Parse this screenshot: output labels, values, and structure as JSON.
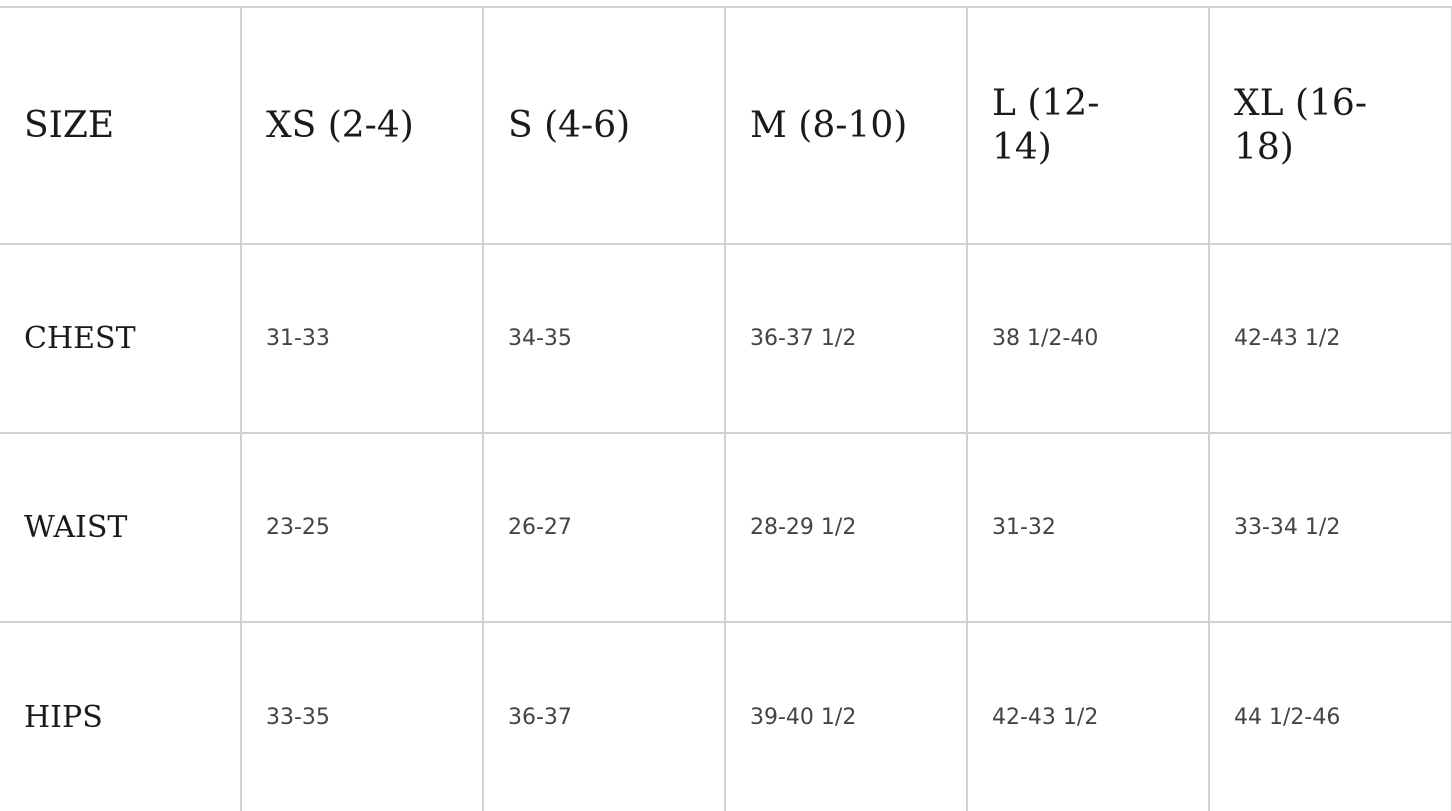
{
  "header": [
    "SIZE",
    "XS (2-4)",
    "S (4-6)",
    "M (8-10)",
    "L (12-14)",
    "XL (16-18)"
  ],
  "rows": [
    {
      "label": "CHEST",
      "values": [
        "31-33",
        "34-35",
        "36-37 1/2",
        "38 1/2-40",
        "42-43 1/2"
      ]
    },
    {
      "label": "WAIST",
      "values": [
        "23-25",
        "26-27",
        "28-29 1/2",
        "31-32",
        "33-34 1/2"
      ]
    },
    {
      "label": "HIPS",
      "values": [
        "33-35",
        "36-37",
        "39-40 1/2",
        "42-43 1/2",
        "44 1/2-46"
      ]
    }
  ]
}
